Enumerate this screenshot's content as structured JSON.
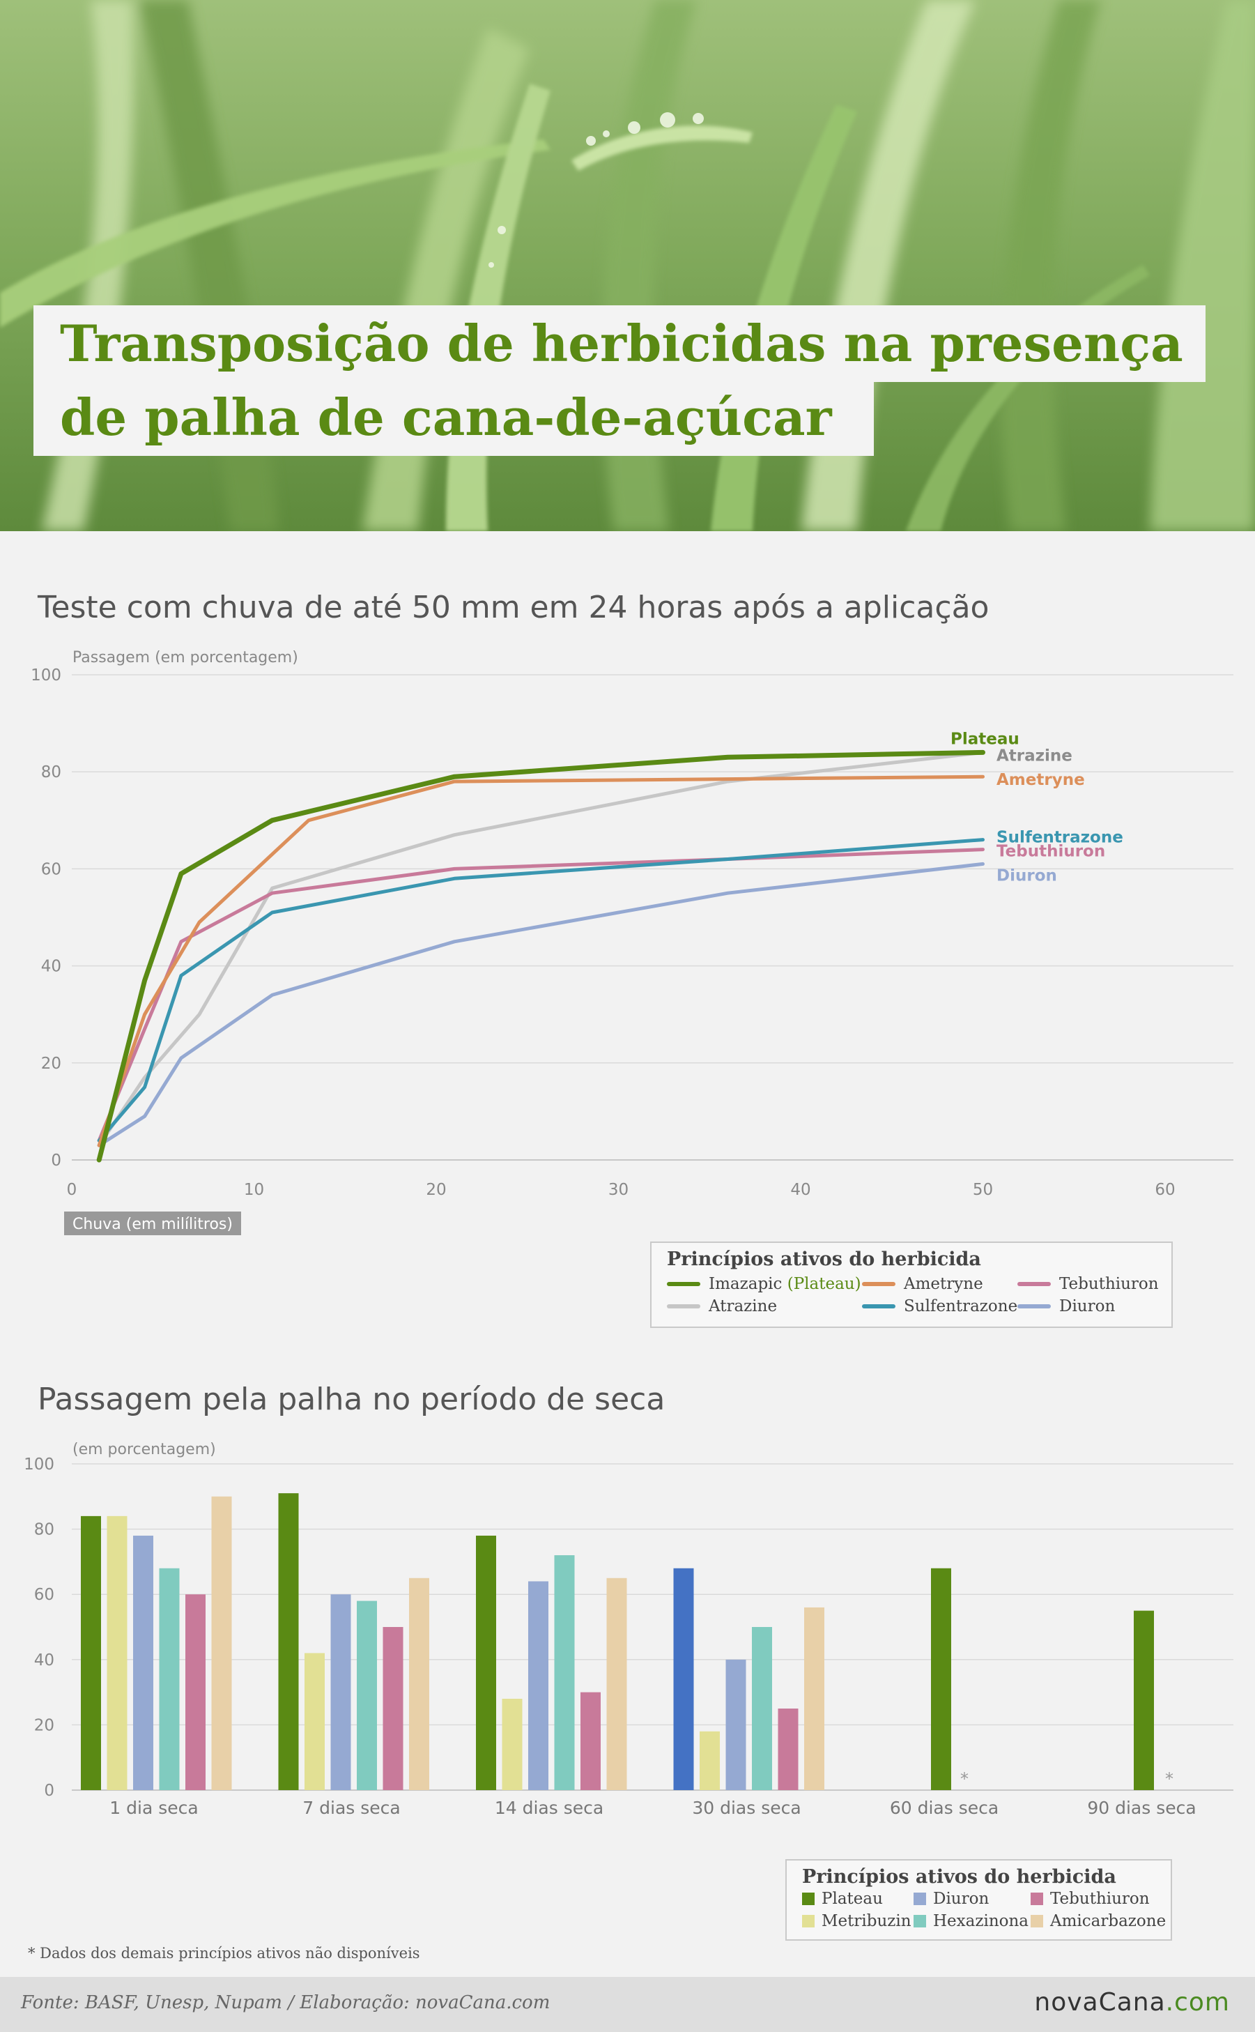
{
  "header": {
    "title_line1": "Transposição de herbicidas na presença",
    "title_line2": "de palha de cana-de-açúcar"
  },
  "colors": {
    "plateau": "#5a8a14",
    "ametryne": "#dc8f5a",
    "atrazine": "#c6c6c6",
    "sulfentrazone": "#3a96b0",
    "tebuthiuron": "#c87a9a",
    "diuron": "#95a9d2",
    "metribuzin": "#e2e094",
    "hexazinona": "#80cbbf",
    "amicarbazone": "#e8d0a8",
    "highlight_bar": "#4472c4"
  },
  "chart_data": [
    {
      "type": "line",
      "title": "Teste com chuva de até 50 mm em 24 horas após a aplicação",
      "ylabel": "Passagem (em porcentagem)",
      "xlabel": "Chuva (em milílitros)",
      "xlim": [
        0,
        60
      ],
      "ylim": [
        0,
        100
      ],
      "xticks": [
        0,
        10,
        20,
        30,
        40,
        50,
        60
      ],
      "yticks": [
        0,
        20,
        40,
        60,
        80,
        100
      ],
      "grid": true,
      "legend": {
        "title": "Princípios ativos do herbicida",
        "position": "bottom-right",
        "items": [
          {
            "key": "plateau",
            "label": "Imazapic",
            "extra": "(Plateau)"
          },
          {
            "key": "ametryne",
            "label": "Ametryne"
          },
          {
            "key": "tebuthiuron",
            "label": "Tebuthiuron"
          },
          {
            "key": "atrazine",
            "label": "Atrazine"
          },
          {
            "key": "sulfentrazone",
            "label": "Sulfentrazone"
          },
          {
            "key": "diuron",
            "label": "Diuron"
          }
        ]
      },
      "series": [
        {
          "key": "atrazine",
          "name": "Atrazine",
          "x": [
            1.5,
            4,
            7,
            11,
            21,
            36,
            50
          ],
          "y": [
            3,
            17,
            30,
            56,
            67,
            78,
            84
          ]
        },
        {
          "key": "diuron",
          "name": "Diuron",
          "x": [
            1.5,
            4,
            6,
            11,
            21,
            36,
            50
          ],
          "y": [
            3,
            9,
            21,
            34,
            45,
            55,
            61
          ]
        },
        {
          "key": "tebuthiuron",
          "name": "Tebuthiuron",
          "x": [
            1.5,
            4,
            6,
            11,
            21,
            36,
            50
          ],
          "y": [
            4,
            27,
            45,
            55,
            60,
            62,
            64
          ]
        },
        {
          "key": "sulfentrazone",
          "name": "Sulfentrazone",
          "x": [
            1.5,
            4,
            6,
            11,
            21,
            36,
            50
          ],
          "y": [
            4,
            15,
            38,
            51,
            58,
            62,
            66
          ]
        },
        {
          "key": "ametryne",
          "name": "Ametryne",
          "x": [
            1.5,
            4,
            7,
            13,
            21,
            36,
            50
          ],
          "y": [
            3,
            30,
            49,
            70,
            78,
            78.5,
            79
          ]
        },
        {
          "key": "plateau",
          "name": "Plateau",
          "x": [
            1.5,
            4,
            6,
            11,
            21,
            36,
            50
          ],
          "y": [
            0,
            37,
            59,
            70,
            79,
            83,
            84
          ]
        }
      ],
      "end_labels": [
        {
          "key": "plateau",
          "text": "Plateau"
        },
        {
          "key": "atrazine",
          "text": "Atrazine"
        },
        {
          "key": "ametryne",
          "text": "Ametryne"
        },
        {
          "key": "sulfentrazone",
          "text": "Sulfentrazone"
        },
        {
          "key": "tebuthiuron",
          "text": "Tebuthiuron"
        },
        {
          "key": "diuron",
          "text": "Diuron"
        }
      ]
    },
    {
      "type": "bar",
      "title": "Passagem pela palha no período de seca",
      "ylabel": "(em porcentagem)",
      "ylim": [
        0,
        100
      ],
      "yticks": [
        0,
        20,
        40,
        60,
        80,
        100
      ],
      "grid": true,
      "categories": [
        "1 dia seca",
        "7 dias seca",
        "14 dias seca",
        "30 dias seca",
        "60 dias seca",
        "90 dias seca"
      ],
      "series": [
        {
          "key": "plateau",
          "name": "Plateau",
          "values": [
            84,
            91,
            78,
            68,
            68,
            55
          ]
        },
        {
          "key": "metribuzin",
          "name": "Metribuzin",
          "values": [
            84,
            42,
            28,
            18,
            null,
            null
          ]
        },
        {
          "key": "diuron",
          "name": "Diuron",
          "values": [
            78,
            60,
            64,
            40,
            null,
            null
          ]
        },
        {
          "key": "hexazinona",
          "name": "Hexazinona",
          "values": [
            68,
            58,
            72,
            50,
            null,
            null
          ]
        },
        {
          "key": "tebuthiuron",
          "name": "Tebuthiuron",
          "values": [
            60,
            50,
            30,
            25,
            null,
            null
          ]
        },
        {
          "key": "amicarbazone",
          "name": "Amicarbazone",
          "values": [
            90,
            65,
            65,
            56,
            null,
            null
          ]
        }
      ],
      "highlighted_bar": {
        "series": "plateau",
        "category": "30 dias seca"
      },
      "unavailable_marker": "*",
      "unavailable_categories": [
        "60 dias seca",
        "90 dias seca"
      ],
      "legend": {
        "title": "Princípios ativos do herbicida",
        "position": "bottom-right",
        "items": [
          {
            "key": "plateau",
            "label": "Plateau"
          },
          {
            "key": "diuron",
            "label": "Diuron"
          },
          {
            "key": "tebuthiuron",
            "label": "Tebuthiuron"
          },
          {
            "key": "metribuzin",
            "label": "Metribuzin"
          },
          {
            "key": "hexazinona",
            "label": "Hexazinona"
          },
          {
            "key": "amicarbazone",
            "label": "Amicarbazone"
          }
        ]
      }
    }
  ],
  "footnote": "* Dados dos demais princípios ativos não disponíveis",
  "footer": {
    "source": "Fonte: BASF, Unesp, Nupam / Elaboração: novaCana.com",
    "brand_main": "novaCana",
    "brand_suffix": ".com"
  }
}
